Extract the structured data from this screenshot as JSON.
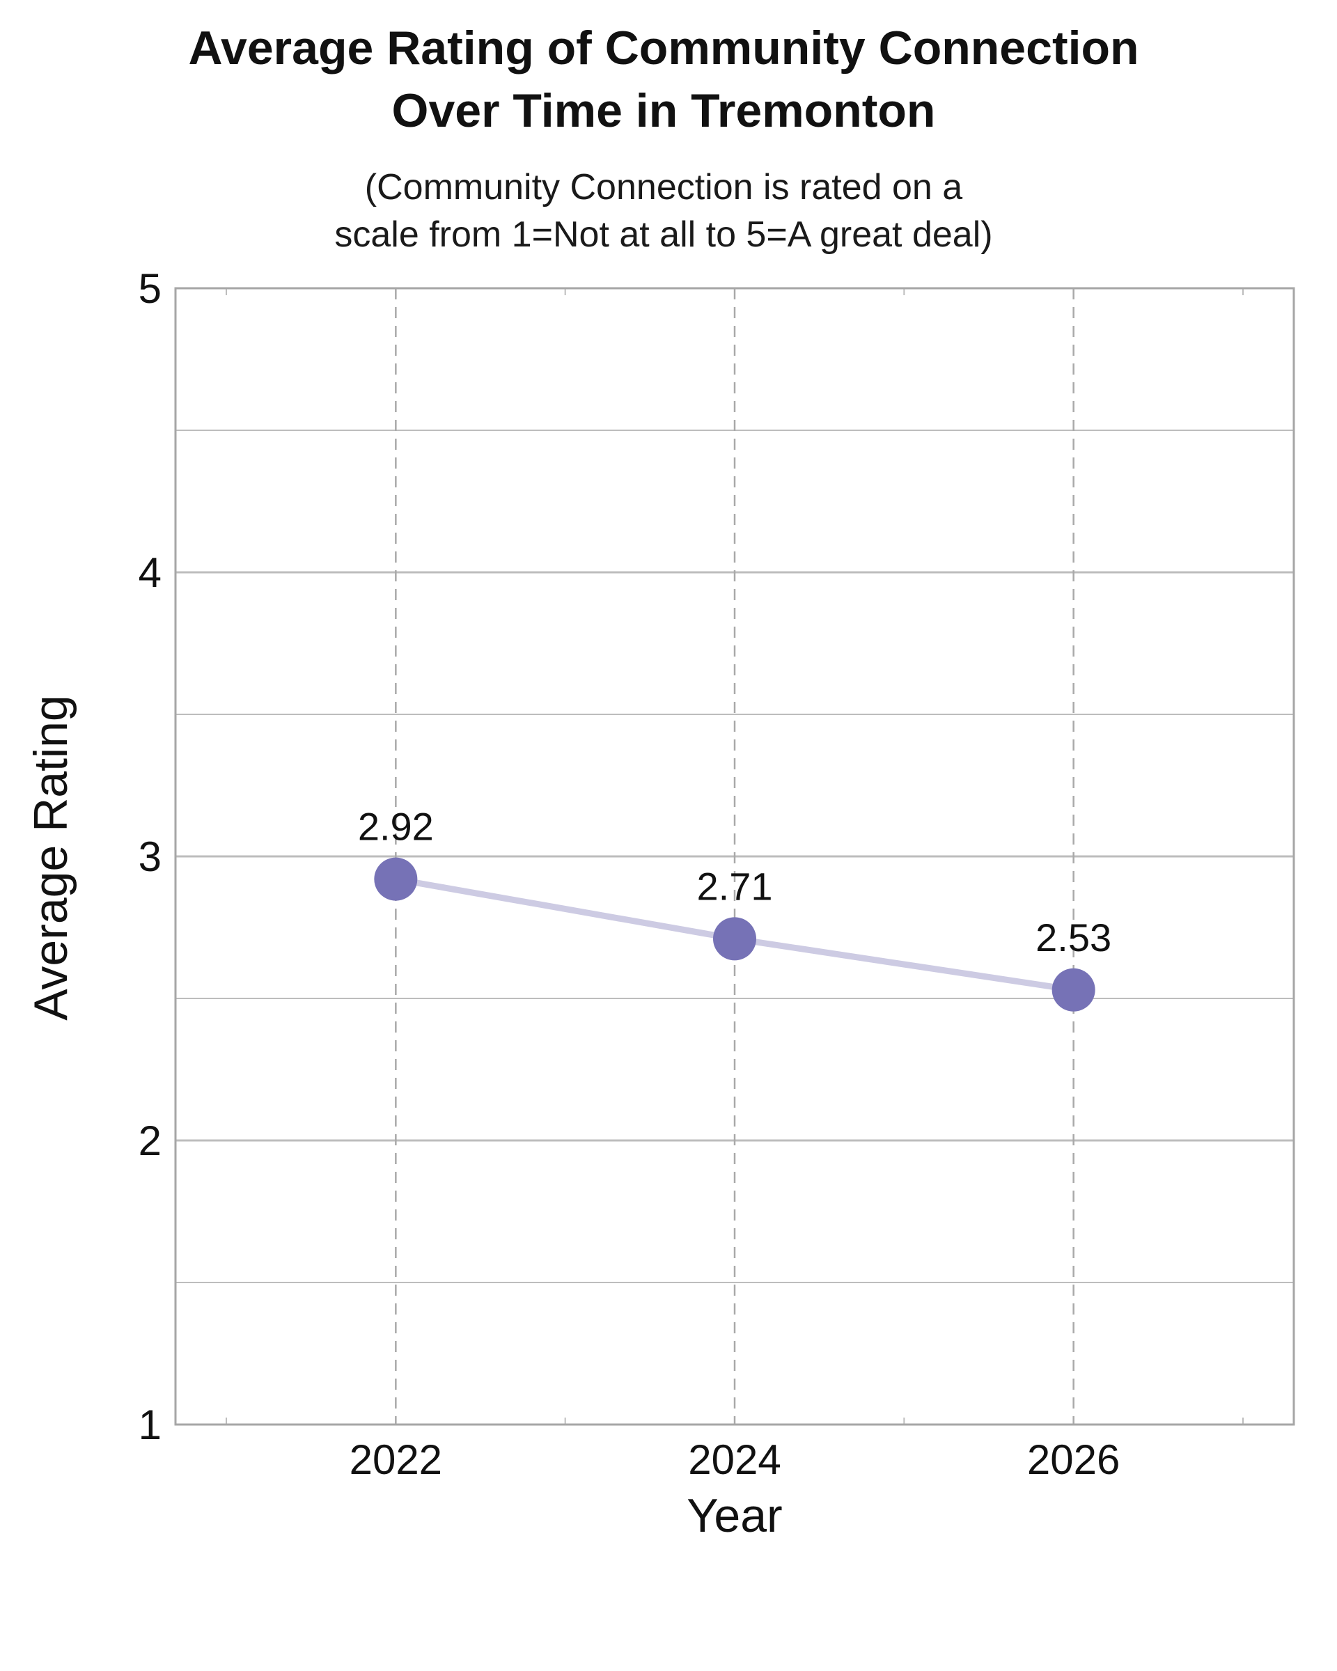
{
  "chart_data": {
    "type": "line",
    "title": [
      "Average Rating of Community Connection",
      "Over Time in Tremonton"
    ],
    "subtitle": [
      "(Community Connection is rated on a",
      "scale from 1=Not at all to 5=A great deal)"
    ],
    "xlabel": "Year",
    "ylabel": "Average Rating",
    "x": [
      2022,
      2024,
      2026
    ],
    "x_tick_labels": [
      "2022",
      "2024",
      "2026"
    ],
    "xlim": [
      2020.7,
      2027.3
    ],
    "y_ticks": [
      1,
      2,
      3,
      4,
      5
    ],
    "y_tick_labels": [
      "1",
      "2",
      "3",
      "4",
      "5"
    ],
    "ylim": [
      1,
      5
    ],
    "series": [
      {
        "values": [
          2.92,
          2.71,
          2.53
        ],
        "labels": [
          "2.92",
          "2.71",
          "2.53"
        ]
      }
    ],
    "grid": true,
    "colors": {
      "marker": "#7672b6",
      "line": "#cdcbe3",
      "grid": "#bdbdbd",
      "vertical_grid": "#a9a9a9",
      "frame": "#a6a6a6"
    }
  }
}
